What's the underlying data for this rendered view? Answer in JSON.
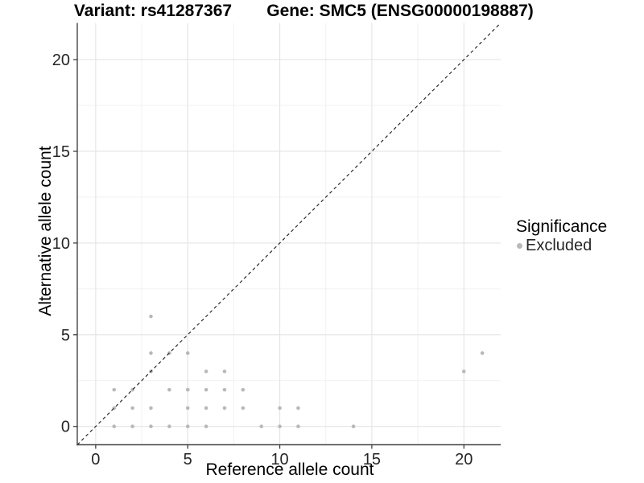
{
  "chart_data": {
    "type": "scatter",
    "titles": {
      "left": "Variant: rs41287367",
      "right": "Gene: SMC5 (ENSG00000198887)"
    },
    "xlabel": "Reference allele count",
    "ylabel": "Alternative allele count",
    "xlim": [
      -1,
      22
    ],
    "ylim": [
      -1,
      22
    ],
    "xticks": [
      0,
      5,
      10,
      15,
      20
    ],
    "yticks": [
      0,
      5,
      10,
      15,
      20
    ],
    "minor_gridlines_x": [
      2.5,
      7.5,
      12.5,
      17.5
    ],
    "minor_gridlines_y": [
      2.5,
      7.5,
      12.5,
      17.5
    ],
    "grid": "on",
    "reference_line": {
      "slope": 1,
      "intercept": 0,
      "style": "dashed",
      "color": "#1a1a1a"
    },
    "series": [
      {
        "name": "Excluded",
        "color": "#b9b9b9",
        "points": [
          [
            1,
            0
          ],
          [
            2,
            0
          ],
          [
            3,
            0
          ],
          [
            4,
            0
          ],
          [
            5,
            0
          ],
          [
            6,
            0
          ],
          [
            9,
            0
          ],
          [
            10,
            0
          ],
          [
            11,
            0
          ],
          [
            14,
            0
          ],
          [
            1,
            1
          ],
          [
            2,
            1
          ],
          [
            3,
            1
          ],
          [
            5,
            1
          ],
          [
            6,
            1
          ],
          [
            7,
            1
          ],
          [
            8,
            1
          ],
          [
            10,
            1
          ],
          [
            11,
            1
          ],
          [
            1,
            2
          ],
          [
            2,
            2
          ],
          [
            4,
            2
          ],
          [
            5,
            2
          ],
          [
            6,
            2
          ],
          [
            7,
            2
          ],
          [
            8,
            2
          ],
          [
            3,
            3
          ],
          [
            6,
            3
          ],
          [
            7,
            3
          ],
          [
            20,
            3
          ],
          [
            3,
            4
          ],
          [
            4,
            4
          ],
          [
            5,
            4
          ],
          [
            21,
            4
          ],
          [
            3,
            6
          ]
        ]
      }
    ],
    "legend": {
      "title": "Significance",
      "position": "right",
      "entries": [
        {
          "label": "Excluded",
          "color": "#b9b9b9",
          "marker": "circle"
        }
      ]
    },
    "style": {
      "point_radius": 2.3,
      "grid_major_color": "#e4e4e4",
      "grid_minor_color": "#f1f1f1",
      "axis_color": "#444444",
      "tick_color": "#333333",
      "tick_label_color": "#262626"
    }
  }
}
